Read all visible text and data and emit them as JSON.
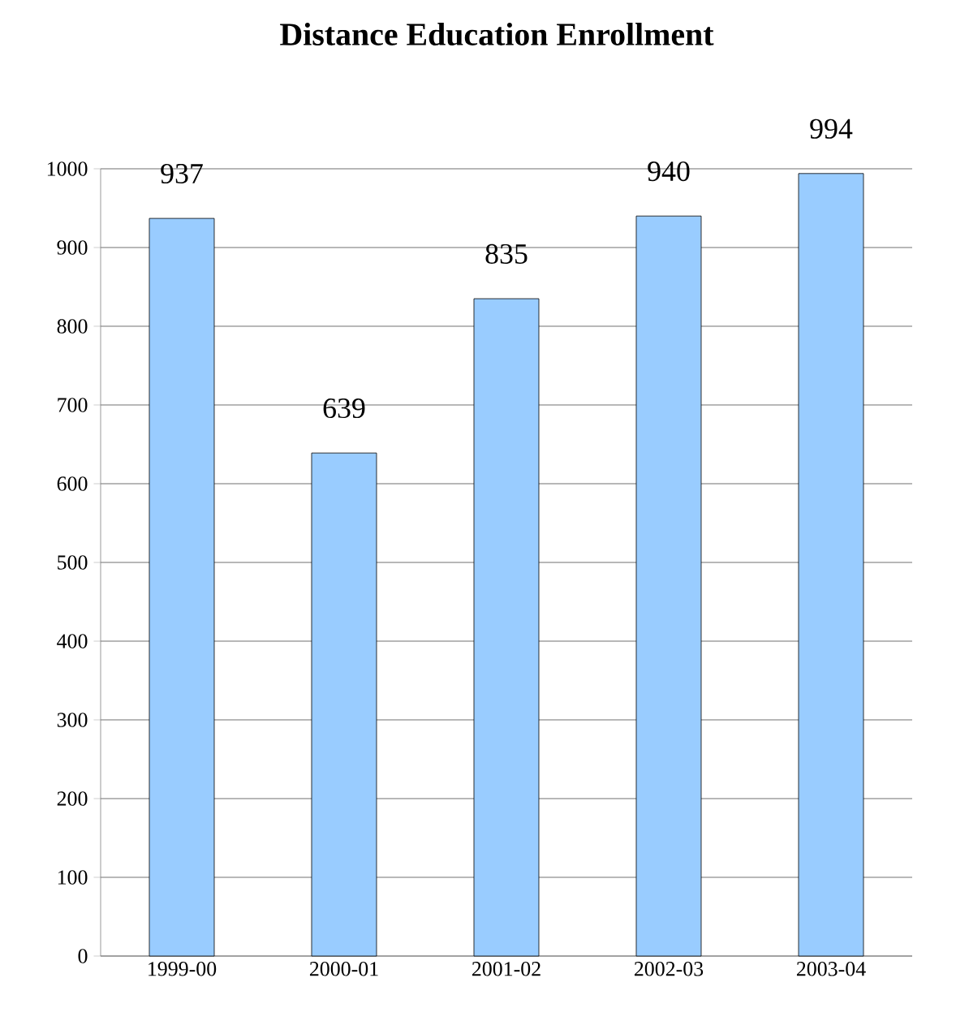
{
  "chart_data": {
    "type": "bar",
    "title": "Distance Education Enrollment",
    "categories": [
      "1999-00",
      "2000-01",
      "2001-02",
      "2002-03",
      "2003-04"
    ],
    "values": [
      937,
      639,
      835,
      940,
      994
    ],
    "color": "#99ccff",
    "ylim": [
      0,
      1000
    ],
    "yticks": [
      0,
      100,
      200,
      300,
      400,
      500,
      600,
      700,
      800,
      900,
      1000
    ],
    "grid": "y",
    "data_labels": true
  }
}
